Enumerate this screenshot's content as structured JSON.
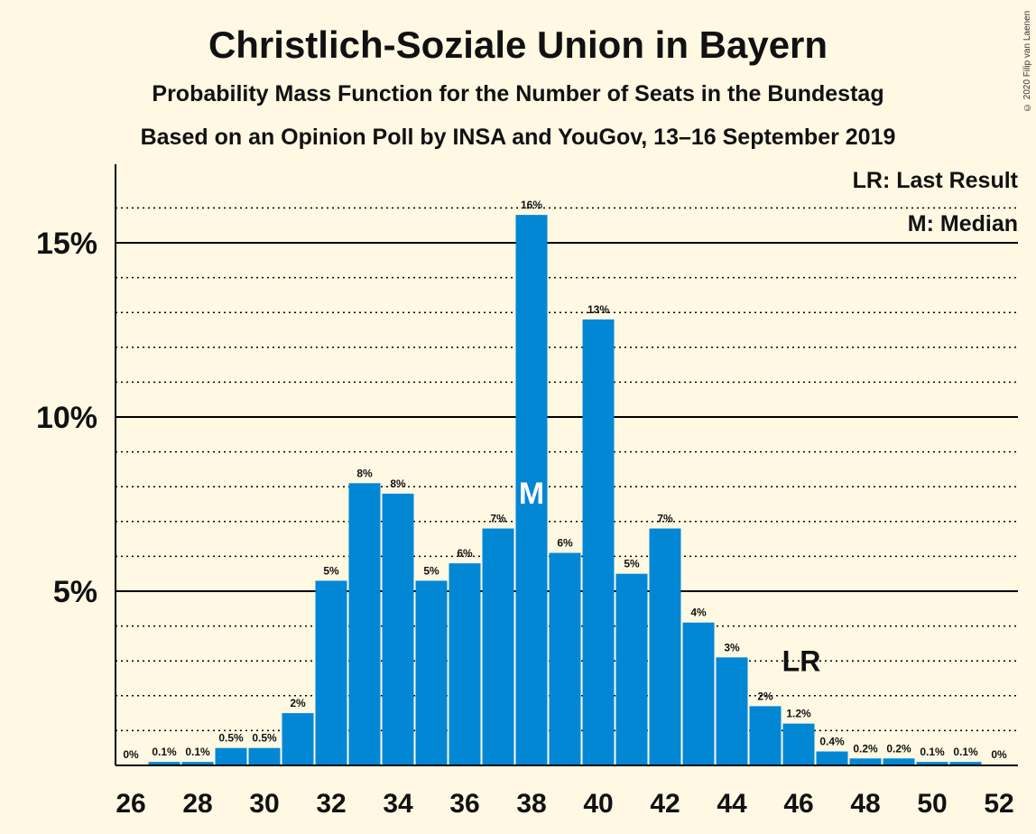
{
  "title": "Christlich-Soziale Union in Bayern",
  "subtitle": "Probability Mass Function for the Number of Seats in the Bundestag",
  "subtitle2": "Based on an Opinion Poll by INSA and YouGov, 13–16 September 2019",
  "copyright": "© 2020 Filip van Laenen",
  "legend": {
    "last_result": "LR: Last Result",
    "median": "M: Median"
  },
  "colors": {
    "bar": "#0287d5",
    "background": "#fff8e3",
    "text": "#111111"
  },
  "chart_data": {
    "type": "bar",
    "x": [
      26,
      27,
      28,
      29,
      30,
      31,
      32,
      33,
      34,
      35,
      36,
      37,
      38,
      39,
      40,
      41,
      42,
      43,
      44,
      45,
      46,
      47,
      48,
      49,
      50,
      51,
      52
    ],
    "values": [
      0,
      0.1,
      0.1,
      0.5,
      0.5,
      1.5,
      5.3,
      8.1,
      7.8,
      5.3,
      5.8,
      6.8,
      15.8,
      6.1,
      12.8,
      5.5,
      6.8,
      4.1,
      3.1,
      1.7,
      1.2,
      0.4,
      0.2,
      0.2,
      0.1,
      0.1,
      0
    ],
    "labels": [
      "0%",
      "0.1%",
      "0.1%",
      "0.5%",
      "0.5%",
      "2%",
      "5%",
      "8%",
      "8%",
      "5%",
      "6%",
      "7%",
      "16%",
      "6%",
      "13%",
      "5%",
      "7%",
      "4%",
      "3%",
      "2%",
      "1.2%",
      "0.4%",
      "0.2%",
      "0.2%",
      "0.1%",
      "0.1%",
      "0%"
    ],
    "xticks": [
      26,
      28,
      30,
      32,
      34,
      36,
      38,
      40,
      42,
      44,
      46,
      48,
      50,
      52
    ],
    "yticks": [
      {
        "value": 5,
        "label": "5%"
      },
      {
        "value": 10,
        "label": "10%"
      },
      {
        "value": 15,
        "label": "15%"
      }
    ],
    "ylim": [
      0,
      17
    ],
    "median": {
      "seats": 38,
      "marker": "M"
    },
    "last_result": {
      "seats": 46,
      "marker": "LR"
    },
    "grid": "dotted minor lines every 1%, solid major lines every 5%"
  }
}
